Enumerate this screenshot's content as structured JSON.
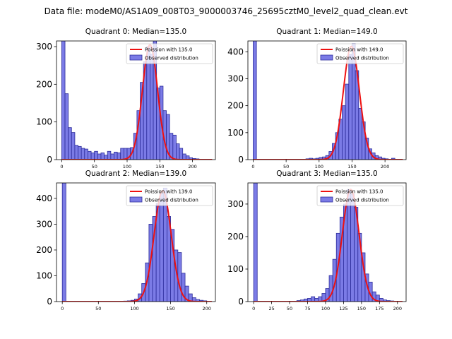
{
  "figure": {
    "title": "Data file: modeM0/AS1A09_008T03_9000003746_25695cztM0_level2_quad_clean.evt"
  },
  "colors": {
    "hist_fill": "#7b7be6",
    "hist_edge": "#2c2c9a",
    "poisson": "#ee1111"
  },
  "chart_data": [
    {
      "type": "bar",
      "title": "Quadrant 0: Median=135.0",
      "median": 135.0,
      "bin_width": 5,
      "xlim": [
        -8,
        235
      ],
      "ylim": [
        0,
        315
      ],
      "xticks": [
        0,
        50,
        100,
        150,
        200
      ],
      "yticks": [
        0,
        100,
        200,
        300
      ],
      "bins_x": [
        0,
        5,
        10,
        15,
        20,
        25,
        30,
        35,
        40,
        45,
        50,
        55,
        60,
        65,
        70,
        75,
        80,
        85,
        90,
        95,
        100,
        105,
        110,
        115,
        120,
        125,
        130,
        135,
        140,
        145,
        150,
        155,
        160,
        165,
        170,
        175,
        180,
        185,
        190,
        195,
        200,
        205,
        210,
        215,
        220
      ],
      "counts": [
        330,
        175,
        85,
        72,
        38,
        35,
        30,
        28,
        22,
        18,
        22,
        15,
        18,
        12,
        22,
        15,
        20,
        18,
        30,
        30,
        30,
        32,
        70,
        130,
        205,
        260,
        300,
        280,
        320,
        190,
        195,
        130,
        120,
        70,
        65,
        42,
        30,
        15,
        10,
        5,
        3,
        2,
        1,
        1,
        0
      ],
      "poisson_label": "Poission with 135.0",
      "observed_label": "Observed distribution",
      "poisson_peak": 305,
      "poisson_sigma": 11.6
    },
    {
      "type": "bar",
      "title": "Quadrant 1: Median=149.0",
      "median": 149.0,
      "bin_width": 5,
      "xlim": [
        -8,
        232
      ],
      "ylim": [
        0,
        440
      ],
      "xticks": [
        0,
        50,
        100,
        150,
        200
      ],
      "yticks": [
        0,
        100,
        200,
        300,
        400
      ],
      "bins_x": [
        0,
        5,
        10,
        15,
        20,
        25,
        30,
        35,
        40,
        45,
        50,
        55,
        60,
        65,
        70,
        75,
        80,
        85,
        90,
        95,
        100,
        105,
        110,
        115,
        120,
        125,
        130,
        135,
        140,
        145,
        150,
        155,
        160,
        165,
        170,
        175,
        180,
        185,
        190,
        195,
        200,
        205,
        210,
        215
      ],
      "counts": [
        445,
        0,
        0,
        0,
        0,
        0,
        0,
        0,
        0,
        0,
        0,
        0,
        0,
        0,
        0,
        0,
        3,
        5,
        3,
        5,
        8,
        10,
        15,
        30,
        60,
        100,
        150,
        200,
        280,
        390,
        430,
        330,
        190,
        140,
        80,
        40,
        25,
        15,
        10,
        5,
        3,
        1,
        5,
        1
      ],
      "poisson_label": "Poission with 149.0",
      "observed_label": "Observed distribution",
      "poisson_peak": 420,
      "poisson_sigma": 12.2
    },
    {
      "type": "bar",
      "title": "Quadrant 2: Median=139.0",
      "median": 139.0,
      "bin_width": 5,
      "xlim": [
        -8,
        212
      ],
      "ylim": [
        0,
        460
      ],
      "xticks": [
        0,
        50,
        100,
        150,
        200
      ],
      "yticks": [
        0,
        100,
        200,
        300,
        400
      ],
      "bins_x": [
        0,
        5,
        10,
        15,
        20,
        25,
        30,
        35,
        40,
        45,
        50,
        55,
        60,
        65,
        70,
        75,
        80,
        85,
        90,
        95,
        100,
        105,
        110,
        115,
        120,
        125,
        130,
        135,
        140,
        145,
        150,
        155,
        160,
        165,
        170,
        175,
        180,
        185,
        190,
        195,
        200
      ],
      "counts": [
        460,
        0,
        0,
        0,
        0,
        0,
        0,
        0,
        0,
        0,
        0,
        0,
        0,
        0,
        0,
        0,
        1,
        2,
        3,
        5,
        10,
        30,
        70,
        150,
        300,
        330,
        380,
        420,
        440,
        330,
        280,
        200,
        190,
        110,
        60,
        30,
        15,
        8,
        5,
        3,
        1
      ],
      "poisson_label": "Poission with 139.0",
      "observed_label": "Observed distribution",
      "poisson_peak": 430,
      "poisson_sigma": 11.8
    },
    {
      "type": "bar",
      "title": "Quadrant 3: Median=135.0",
      "median": 135.0,
      "bin_width": 5,
      "xlim": [
        -8,
        212
      ],
      "ylim": [
        0,
        365
      ],
      "xticks": [
        0,
        25,
        50,
        75,
        100,
        125,
        150,
        175,
        200
      ],
      "yticks": [
        0,
        100,
        200,
        300
      ],
      "bins_x": [
        0,
        5,
        10,
        15,
        20,
        25,
        30,
        35,
        40,
        45,
        50,
        55,
        60,
        65,
        70,
        75,
        80,
        85,
        90,
        95,
        100,
        105,
        110,
        115,
        120,
        125,
        130,
        135,
        140,
        145,
        150,
        155,
        160,
        165,
        170,
        175,
        180,
        185,
        190,
        195,
        200
      ],
      "counts": [
        365,
        0,
        0,
        0,
        0,
        0,
        0,
        0,
        0,
        0,
        0,
        0,
        3,
        5,
        8,
        10,
        15,
        10,
        15,
        25,
        40,
        80,
        130,
        210,
        260,
        300,
        345,
        330,
        290,
        210,
        150,
        85,
        60,
        30,
        20,
        10,
        5,
        3,
        2,
        1,
        1
      ],
      "poisson_label": "Poission with 135.0",
      "observed_label": "Observed distribution",
      "poisson_peak": 345,
      "poisson_sigma": 11.6
    }
  ]
}
